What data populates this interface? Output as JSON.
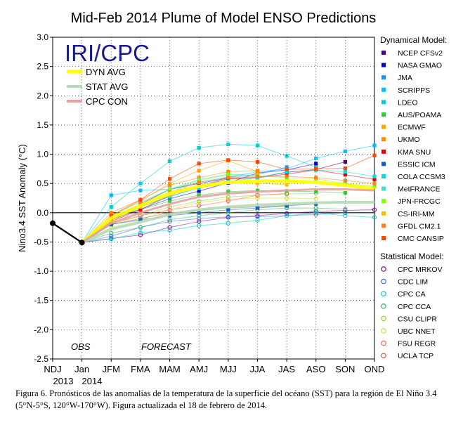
{
  "chart_data": {
    "type": "line",
    "title": "Mid-Feb 2014 Plume of Model ENSO Predictions",
    "logo_text": "IRI/CPC",
    "ylabel": "Nino3.4 SST Anomaly (°C)",
    "ylim": [
      -2.5,
      3.0
    ],
    "yticks": [
      "3.0",
      "2.5",
      "2.0",
      "1.5",
      "1.0",
      "0.5",
      "0.0",
      "-0.5",
      "-1.0",
      "-1.5",
      "-2.0",
      "-2.5"
    ],
    "categories": [
      "NDJ",
      "Jan",
      "JFM",
      "FMA",
      "MAM",
      "AMJ",
      "MJJ",
      "JJA",
      "JAS",
      "ASO",
      "SON",
      "OND"
    ],
    "year_labels": [
      "2013",
      "2014"
    ],
    "obs_label": "OBS",
    "forecast_label": "FORECAST",
    "observed": [
      -0.18,
      -0.51
    ],
    "avg_legend": [
      {
        "name": "DYN AVG",
        "color": "#ffff00"
      },
      {
        "name": "STAT AVG",
        "color": "#b4dcb4"
      },
      {
        "name": "CPC CON",
        "color": "#e6a0a0"
      }
    ],
    "averages": [
      {
        "name": "DYN AVG",
        "color": "#ffff00",
        "values": [
          -0.51,
          -0.09,
          0.12,
          0.33,
          0.45,
          0.52,
          0.54,
          0.54,
          0.52,
          0.47,
          0.41
        ]
      },
      {
        "name": "STAT AVG",
        "color": "#b4dcb4",
        "values": [
          -0.51,
          -0.28,
          -0.16,
          -0.03,
          0.05,
          0.1,
          0.13,
          0.15,
          0.17,
          0.18,
          0.18
        ]
      },
      {
        "name": "CPC CON",
        "color": "#e6a0a0",
        "values": [
          -0.51,
          -0.18,
          0.0,
          0.15,
          0.27,
          0.33,
          0.36,
          0.38,
          0.4,
          0.4,
          0.38
        ]
      }
    ],
    "dynamical_heading": "Dynamical Model:",
    "dynamical": [
      {
        "name": "NCEP CFSv2",
        "color": "#4b0082",
        "values": [
          -0.51,
          -0.12,
          0.15,
          0.4,
          0.5,
          0.59,
          0.6,
          0.69,
          0.74,
          0.87,
          null
        ]
      },
      {
        "name": "NASA GMAO",
        "color": "#0000cd",
        "values": [
          -0.51,
          -0.12,
          0.06,
          0.24,
          0.37,
          0.51,
          0.68,
          0.73,
          0.84,
          null,
          null
        ]
      },
      {
        "name": "JMA",
        "color": "#1e90ff",
        "values": [
          -0.51,
          -0.1,
          0.1,
          0.27,
          0.45,
          0.61,
          0.65,
          0.78,
          null,
          null,
          null
        ]
      },
      {
        "name": "SCRIPPS",
        "color": "#00bfff",
        "values": [
          -0.51,
          0.3,
          0.38,
          0.4,
          0.52,
          0.61,
          0.7,
          0.75,
          0.93,
          1.05,
          1.15
        ]
      },
      {
        "name": "LDEO",
        "color": "#00ced1",
        "values": [
          -0.51,
          0.1,
          0.5,
          0.88,
          1.11,
          1.17,
          1.15,
          0.97,
          0.78,
          null,
          null
        ]
      },
      {
        "name": "AUS/POAMA",
        "color": "#32cd32",
        "values": [
          -0.51,
          -0.05,
          0.05,
          0.2,
          0.3,
          0.36,
          0.38,
          0.37,
          0.36,
          0.34,
          null
        ]
      },
      {
        "name": "ECMWF",
        "color": "#ffa500",
        "values": [
          -0.51,
          -0.05,
          0.2,
          0.5,
          0.72,
          0.89,
          0.7,
          null,
          null,
          null,
          null
        ]
      },
      {
        "name": "UKMO",
        "color": "#ff8c00",
        "values": [
          -0.51,
          0.0,
          0.22,
          0.47,
          0.6,
          0.7,
          0.72,
          null,
          null,
          null,
          null
        ]
      },
      {
        "name": "KMA SNU",
        "color": "#e00000",
        "values": [
          -0.51,
          -0.15,
          0.05,
          0.3,
          0.45,
          0.58,
          0.6,
          0.66,
          0.73,
          0.65,
          0.57
        ]
      },
      {
        "name": "ESSIC ICM",
        "color": "#1560bd",
        "values": [
          -0.51,
          -0.2,
          -0.12,
          -0.05,
          0.0,
          0.05,
          0.08,
          0.12,
          0.15,
          null,
          null
        ]
      },
      {
        "name": "COLA CCSM3",
        "color": "#00e0e0",
        "values": [
          -0.51,
          -0.1,
          0.1,
          0.28,
          0.42,
          0.53,
          0.6,
          0.7,
          0.73,
          0.7,
          0.62
        ]
      },
      {
        "name": "MetFRANCE",
        "color": "#40e0d0",
        "values": [
          -0.51,
          -0.05,
          0.18,
          0.4,
          0.57,
          0.66,
          0.64,
          null,
          null,
          null,
          null
        ]
      },
      {
        "name": "JPN-FRCGC",
        "color": "#7fff00",
        "values": [
          -0.51,
          -0.12,
          0.12,
          0.4,
          0.55,
          0.65,
          0.63,
          0.6,
          0.58,
          0.5,
          0.45
        ]
      },
      {
        "name": "CS-IRI-MM",
        "color": "#ffc000",
        "values": [
          -0.51,
          -0.15,
          0.1,
          0.3,
          0.45,
          0.52,
          0.5,
          0.48,
          null,
          null,
          null
        ]
      },
      {
        "name": "GFDL CM2.1",
        "color": "#ff7f24",
        "values": [
          -0.51,
          -0.1,
          0.15,
          0.35,
          0.52,
          0.6,
          0.62,
          0.62,
          0.6,
          0.55,
          0.5
        ]
      },
      {
        "name": "CMC CANSIP",
        "color": "#ff4500",
        "values": [
          -0.51,
          -0.05,
          0.22,
          0.58,
          0.84,
          0.9,
          0.87,
          0.74,
          0.75,
          0.76,
          0.98
        ]
      }
    ],
    "statistical_heading": "Statistical Model:",
    "statistical": [
      {
        "name": "CPC MRKOV",
        "color": "#8b008b",
        "values": [
          -0.51,
          -0.44,
          -0.38,
          -0.25,
          -0.15,
          -0.08,
          -0.05,
          -0.01,
          0.02,
          0.04,
          0.05
        ]
      },
      {
        "name": "CDC LIM",
        "color": "#4169e1",
        "values": [
          -0.51,
          -0.4,
          -0.25,
          -0.15,
          -0.1,
          -0.07,
          -0.07,
          -0.05,
          -0.03,
          0.0,
          null
        ]
      },
      {
        "name": "CPC CA",
        "color": "#00ced1",
        "values": [
          -0.51,
          -0.45,
          -0.34,
          -0.3,
          -0.22,
          -0.18,
          -0.13,
          -0.05,
          0.0,
          -0.05,
          -0.08
        ]
      },
      {
        "name": "CPC CCA",
        "color": "#3cb371",
        "values": [
          -0.51,
          -0.35,
          -0.25,
          -0.12,
          -0.05,
          0.0,
          0.05,
          0.08,
          0.08,
          0.06,
          null
        ]
      },
      {
        "name": "CSU CLIPR",
        "color": "#9acd32",
        "values": [
          -0.51,
          -0.2,
          -0.05,
          0.1,
          0.2,
          0.27,
          0.3,
          0.32,
          0.33,
          null,
          null
        ]
      },
      {
        "name": "UBC NNET",
        "color": "#cddc39",
        "values": [
          -0.51,
          -0.25,
          -0.12,
          0.05,
          0.18,
          0.23,
          0.25,
          0.25,
          0.24,
          null,
          null
        ]
      },
      {
        "name": "FSU REGR",
        "color": "#ff6347",
        "values": [
          -0.51,
          -0.18,
          -0.05,
          0.05,
          0.12,
          0.2,
          0.3,
          0.33,
          null,
          null,
          null
        ]
      },
      {
        "name": "UCLA TCP",
        "color": "#cd5c5c",
        "values": [
          -0.51,
          -0.2,
          -0.1,
          0.0,
          0.04,
          0.08,
          0.1,
          0.12,
          null,
          null,
          null
        ]
      }
    ]
  },
  "caption": "Figura 6. Pronósticos de las anomalías de la temperatura de la superficie del océano (SST) para la región de El Niño 3.4 (5°N-5°S, 120°W-170°W). Figura actualizada el 18 de febrero de 2014."
}
